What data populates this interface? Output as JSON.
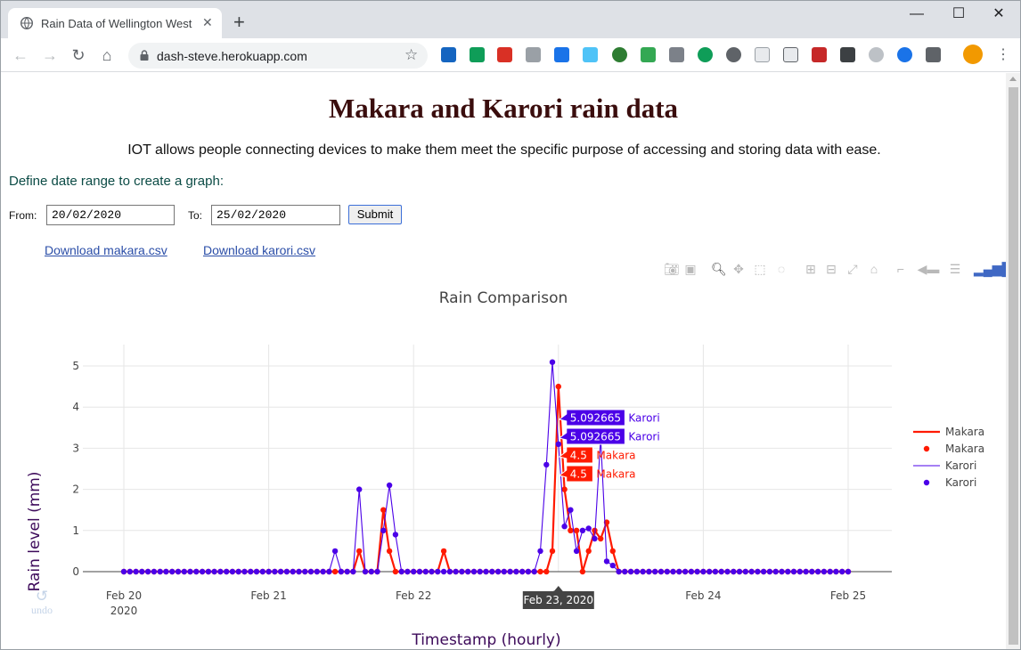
{
  "browser": {
    "tab_title": "Rain Data of Wellington West",
    "url": "dash-steve.herokuapp.com"
  },
  "page": {
    "heading": "Makara and Karori rain data",
    "subtitle": "IOT allows people connecting devices to make them meet the specific purpose of accessing and storing data with ease.",
    "define_label": "Define date range to create a graph:",
    "from_label": "From:",
    "from_value": "20/02/2020",
    "to_label": "To:",
    "to_value": "25/02/2020",
    "submit_label": "Submit",
    "download_makara": "Download makara.csv",
    "download_karori": "Download karori.csv",
    "undo_label": "undo"
  },
  "colors": {
    "makara": "#ff1a00",
    "karori": "#4b00e8",
    "heading": "#3a0d0d",
    "axis_title": "#3d0a5a"
  },
  "chart_data": {
    "type": "line",
    "title": "Rain Comparison",
    "xlabel": "Timestamp (hourly)",
    "ylabel": "Rain level (mm)",
    "x_ticks": [
      "Feb 20",
      "Feb 21",
      "Feb 22",
      "Feb 23",
      "Feb 24",
      "Feb 25"
    ],
    "x_tick_year": "2020",
    "y_ticks": [
      "0",
      "1",
      "2",
      "3",
      "4",
      "5"
    ],
    "xlim_hours": [
      0,
      120
    ],
    "ylim": [
      0,
      5.3
    ],
    "grid": true,
    "legend_position": "top-right",
    "legend": [
      "Makara",
      "Makara",
      "Karori",
      "Karori"
    ],
    "hover": {
      "x_label": "Feb 23, 2020",
      "labels": [
        {
          "value": "5.092665",
          "series": "Karori"
        },
        {
          "value": "5.092665",
          "series": "Karori"
        },
        {
          "value": "4.5",
          "series": "Makara"
        },
        {
          "value": "4.5",
          "series": "Makara"
        }
      ]
    },
    "series": [
      {
        "name": "Makara",
        "x_hours": [
          0,
          1,
          2,
          3,
          4,
          5,
          6,
          7,
          8,
          9,
          10,
          11,
          12,
          13,
          14,
          15,
          16,
          17,
          18,
          19,
          20,
          21,
          22,
          23,
          24,
          25,
          26,
          27,
          28,
          29,
          30,
          31,
          32,
          33,
          34,
          35,
          36,
          37,
          38,
          39,
          40,
          41,
          42,
          43,
          44,
          45,
          46,
          47,
          48,
          49,
          50,
          51,
          52,
          53,
          54,
          55,
          56,
          57,
          58,
          59,
          60,
          61,
          62,
          63,
          64,
          65,
          66,
          67,
          68,
          69,
          70,
          71,
          72,
          73,
          74,
          75,
          76,
          77,
          78,
          79,
          80,
          81,
          82,
          83,
          84,
          85,
          86,
          87,
          88,
          89,
          90,
          91,
          92,
          93,
          94,
          95,
          96,
          97,
          98,
          99,
          100,
          101,
          102,
          103,
          104,
          105,
          106,
          107,
          108,
          109,
          110,
          111,
          112,
          113,
          114,
          115,
          116,
          117,
          118,
          119,
          120
        ],
        "values": [
          0,
          0,
          0,
          0,
          0,
          0,
          0,
          0,
          0,
          0,
          0,
          0,
          0,
          0,
          0,
          0,
          0,
          0,
          0,
          0,
          0,
          0,
          0,
          0,
          0,
          0,
          0,
          0,
          0,
          0,
          0,
          0,
          0,
          0,
          0,
          0,
          0,
          0,
          0,
          0.5,
          0,
          0,
          0,
          1.5,
          0.5,
          0,
          0,
          0,
          0,
          0,
          0,
          0,
          0,
          0.5,
          0,
          0,
          0,
          0,
          0,
          0,
          0,
          0,
          0,
          0,
          0,
          0,
          0,
          0,
          0,
          0,
          0,
          0.5,
          4.5,
          2.0,
          1.0,
          1.0,
          0,
          0.5,
          1.0,
          0.8,
          1.2,
          0.5,
          0,
          0,
          0,
          0,
          0,
          0,
          0,
          0,
          0,
          0,
          0,
          0,
          0,
          0,
          0,
          0,
          0,
          0,
          0,
          0,
          0,
          0,
          0,
          0,
          0,
          0,
          0,
          0,
          0,
          0,
          0,
          0,
          0,
          0,
          0,
          0,
          0,
          0,
          0
        ]
      },
      {
        "name": "Karori",
        "x_hours": [
          0,
          1,
          2,
          3,
          4,
          5,
          6,
          7,
          8,
          9,
          10,
          11,
          12,
          13,
          14,
          15,
          16,
          17,
          18,
          19,
          20,
          21,
          22,
          23,
          24,
          25,
          26,
          27,
          28,
          29,
          30,
          31,
          32,
          33,
          34,
          35,
          36,
          37,
          38,
          39,
          40,
          41,
          42,
          43,
          44,
          45,
          46,
          47,
          48,
          49,
          50,
          51,
          52,
          53,
          54,
          55,
          56,
          57,
          58,
          59,
          60,
          61,
          62,
          63,
          64,
          65,
          66,
          67,
          68,
          69,
          70,
          71,
          72,
          73,
          74,
          75,
          76,
          77,
          78,
          79,
          80,
          81,
          82,
          83,
          84,
          85,
          86,
          87,
          88,
          89,
          90,
          91,
          92,
          93,
          94,
          95,
          96,
          97,
          98,
          99,
          100,
          101,
          102,
          103,
          104,
          105,
          106,
          107,
          108,
          109,
          110,
          111,
          112,
          113,
          114,
          115,
          116,
          117,
          118,
          119,
          120
        ],
        "values": [
          0,
          0,
          0,
          0,
          0,
          0,
          0,
          0,
          0,
          0,
          0,
          0,
          0,
          0,
          0,
          0,
          0,
          0,
          0,
          0,
          0,
          0,
          0,
          0,
          0,
          0,
          0,
          0,
          0,
          0,
          0,
          0,
          0,
          0,
          0,
          0.5,
          0,
          0,
          0,
          2.0,
          0,
          0,
          0,
          1.0,
          2.1,
          0.9,
          0,
          0,
          0,
          0,
          0,
          0,
          0,
          0,
          0,
          0,
          0,
          0,
          0,
          0,
          0,
          0,
          0,
          0,
          0,
          0,
          0,
          0,
          0,
          0.5,
          2.6,
          5.092665,
          3.1,
          1.1,
          1.5,
          0.5,
          1.0,
          1.05,
          0.8,
          3.25,
          0.25,
          0.15,
          0,
          0,
          0,
          0,
          0,
          0,
          0,
          0,
          0,
          0,
          0,
          0,
          0,
          0,
          0,
          0,
          0,
          0,
          0,
          0,
          0,
          0,
          0,
          0,
          0,
          0,
          0,
          0,
          0,
          0,
          0,
          0,
          0,
          0,
          0,
          0,
          0,
          0,
          0
        ]
      }
    ]
  }
}
